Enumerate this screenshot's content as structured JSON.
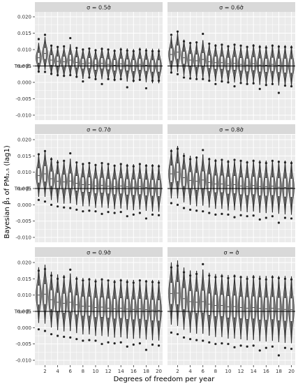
{
  "chart_data": {
    "type": "violin",
    "xlabel": "Degrees of freedom per year",
    "ylabel": "Bayesian β̂₁ of PM₂.₅ (lag1)",
    "x": [
      1,
      2,
      3,
      4,
      5,
      6,
      7,
      8,
      9,
      10,
      11,
      12,
      13,
      14,
      15,
      16,
      17,
      18,
      19,
      20
    ],
    "x_tick_labels": [
      "2",
      "4",
      "6",
      "8",
      "10",
      "12",
      "14",
      "16",
      "18",
      "20"
    ],
    "x_ticks": [
      2,
      4,
      6,
      8,
      10,
      12,
      14,
      16,
      18,
      20
    ],
    "y_tick_labels": [
      "0.020",
      "0.015",
      "0.010",
      "0.005",
      "0.000",
      "-0.005",
      "-0.010"
    ],
    "y_ticks": [
      0.02,
      0.015,
      0.01,
      0.005,
      0.0,
      -0.005,
      -0.01
    ],
    "ylim": [
      -0.0115,
      0.0215
    ],
    "reference_line": {
      "label": "True β₁",
      "value": 0.005
    },
    "legend": "none",
    "grid": true,
    "panels": [
      {
        "title": "σ = 0.5σ̂",
        "medians": [
          0.0075,
          0.0088,
          0.0068,
          0.0064,
          0.0063,
          0.0068,
          0.0061,
          0.0057,
          0.0059,
          0.0054,
          0.0058,
          0.0055,
          0.0052,
          0.0056,
          0.0053,
          0.0051,
          0.0055,
          0.0052,
          0.005,
          0.005
        ],
        "spreads": [
          0.0045,
          0.005,
          0.0045,
          0.0045,
          0.0046,
          0.0048,
          0.0046,
          0.0046,
          0.0046,
          0.0047,
          0.0048,
          0.0047,
          0.0048,
          0.0049,
          0.005,
          0.005,
          0.005,
          0.0051,
          0.0052,
          0.0052
        ],
        "upper_outliers": [
          0.0132,
          0.0145,
          0.0112,
          0.0108,
          0.011,
          0.0135,
          0.0105,
          0.01,
          0.0103,
          0.0098,
          0.0102,
          0.01,
          0.0096,
          0.01,
          0.0097,
          0.0095,
          0.01,
          0.0097,
          0.0095,
          0.0095
        ],
        "lower_outliers": [
          0.0033,
          0.0032,
          0.0026,
          0.0022,
          0.002,
          0.0022,
          0.0017,
          0.0003,
          0.0015,
          0.001,
          -0.0005,
          0.001,
          0.0008,
          0.001,
          -0.0015,
          0.0005,
          0.0008,
          -0.0018,
          0.0005,
          0.0005
        ]
      },
      {
        "title": "σ = 0.6σ̂",
        "medians": [
          0.0085,
          0.0092,
          0.0075,
          0.0068,
          0.0066,
          0.007,
          0.0063,
          0.006,
          0.006,
          0.0056,
          0.0058,
          0.0055,
          0.0053,
          0.0057,
          0.0053,
          0.0052,
          0.0055,
          0.0052,
          0.0051,
          0.005
        ],
        "spreads": [
          0.0055,
          0.006,
          0.0055,
          0.0055,
          0.0056,
          0.0058,
          0.0056,
          0.0056,
          0.0056,
          0.0057,
          0.0058,
          0.0057,
          0.0058,
          0.0059,
          0.006,
          0.006,
          0.006,
          0.0061,
          0.0062,
          0.0062
        ],
        "upper_outliers": [
          0.0145,
          0.0155,
          0.0125,
          0.012,
          0.0122,
          0.0148,
          0.0118,
          0.0112,
          0.0115,
          0.011,
          0.0115,
          0.0112,
          0.0108,
          0.0112,
          0.0108,
          0.0106,
          0.0112,
          0.0109,
          0.0108,
          0.0107
        ],
        "lower_outliers": [
          0.003,
          0.0025,
          0.0015,
          0.0012,
          0.001,
          0.001,
          0.0005,
          -0.0005,
          0.0003,
          0.0,
          -0.0012,
          -0.0002,
          -0.0005,
          -0.0003,
          -0.002,
          -0.0008,
          -0.0005,
          -0.0032,
          -0.001,
          -0.0012
        ]
      },
      {
        "title": "σ = 0.7σ̂",
        "medians": [
          0.009,
          0.0095,
          0.008,
          0.0072,
          0.007,
          0.0073,
          0.0066,
          0.0062,
          0.0062,
          0.0058,
          0.006,
          0.0057,
          0.0055,
          0.0058,
          0.0055,
          0.0054,
          0.0056,
          0.0053,
          0.0052,
          0.0051
        ],
        "spreads": [
          0.0065,
          0.007,
          0.0065,
          0.0065,
          0.0066,
          0.0068,
          0.0066,
          0.0066,
          0.0066,
          0.0067,
          0.0068,
          0.0067,
          0.0068,
          0.0069,
          0.007,
          0.007,
          0.007,
          0.0071,
          0.0072,
          0.0072
        ],
        "upper_outliers": [
          0.0155,
          0.0165,
          0.014,
          0.013,
          0.0135,
          0.0158,
          0.013,
          0.0125,
          0.0128,
          0.0122,
          0.0128,
          0.0125,
          0.012,
          0.0125,
          0.012,
          0.0118,
          0.0125,
          0.012,
          0.012,
          0.0118
        ],
        "lower_outliers": [
          0.0015,
          0.001,
          0.0,
          -0.0005,
          -0.0008,
          -0.001,
          -0.0015,
          -0.002,
          -0.0018,
          -0.002,
          -0.0028,
          -0.0022,
          -0.0025,
          -0.0022,
          -0.0035,
          -0.003,
          -0.0025,
          -0.0042,
          -0.003,
          -0.0032
        ]
      },
      {
        "title": "σ = 0.8σ̂",
        "medians": [
          0.0095,
          0.01,
          0.0083,
          0.0075,
          0.0072,
          0.0076,
          0.0068,
          0.0064,
          0.0064,
          0.006,
          0.0062,
          0.0058,
          0.0056,
          0.0059,
          0.0056,
          0.0055,
          0.0057,
          0.0054,
          0.0053,
          0.0052
        ],
        "spreads": [
          0.0075,
          0.008,
          0.0075,
          0.0075,
          0.0076,
          0.0078,
          0.0076,
          0.0076,
          0.0076,
          0.0077,
          0.0078,
          0.0077,
          0.0078,
          0.0079,
          0.008,
          0.008,
          0.008,
          0.0081,
          0.0082,
          0.0082
        ],
        "upper_outliers": [
          0.0165,
          0.0172,
          0.015,
          0.014,
          0.0145,
          0.0168,
          0.014,
          0.0135,
          0.0138,
          0.0132,
          0.0138,
          0.0135,
          0.013,
          0.0135,
          0.013,
          0.0128,
          0.0135,
          0.0132,
          0.013,
          0.0128
        ],
        "lower_outliers": [
          0.0005,
          0.0,
          -0.001,
          -0.0015,
          -0.0018,
          -0.002,
          -0.0025,
          -0.003,
          -0.0028,
          -0.003,
          -0.0038,
          -0.0032,
          -0.0035,
          -0.0033,
          -0.0045,
          -0.004,
          -0.0035,
          -0.0055,
          -0.004,
          -0.0042
        ]
      },
      {
        "title": "σ = 0.9σ̂",
        "medians": [
          0.01,
          0.0103,
          0.0086,
          0.0078,
          0.0075,
          0.0078,
          0.007,
          0.0066,
          0.0066,
          0.0062,
          0.0063,
          0.006,
          0.0058,
          0.006,
          0.0057,
          0.0056,
          0.0058,
          0.0055,
          0.0054,
          0.0053
        ],
        "spreads": [
          0.0085,
          0.009,
          0.0085,
          0.0085,
          0.0086,
          0.0088,
          0.0086,
          0.0086,
          0.0086,
          0.0087,
          0.0088,
          0.0087,
          0.0088,
          0.0089,
          0.009,
          0.009,
          0.009,
          0.0091,
          0.0092,
          0.0092
        ],
        "upper_outliers": [
          0.0175,
          0.018,
          0.016,
          0.015,
          0.0155,
          0.0178,
          0.015,
          0.0145,
          0.0148,
          0.0142,
          0.0148,
          0.0145,
          0.014,
          0.0145,
          0.014,
          0.0138,
          0.0145,
          0.0142,
          0.014,
          0.0138
        ],
        "lower_outliers": [
          -0.0005,
          -0.001,
          -0.002,
          -0.0025,
          -0.0028,
          -0.003,
          -0.0035,
          -0.004,
          -0.0038,
          -0.004,
          -0.005,
          -0.0045,
          -0.0048,
          -0.0045,
          -0.0058,
          -0.0052,
          -0.0048,
          -0.0068,
          -0.0052,
          -0.0055
        ]
      },
      {
        "title": "σ = σ̂",
        "medians": [
          0.0105,
          0.0106,
          0.0089,
          0.008,
          0.0078,
          0.008,
          0.0072,
          0.0068,
          0.0068,
          0.0064,
          0.0065,
          0.0062,
          0.006,
          0.0062,
          0.0059,
          0.0058,
          0.006,
          0.0057,
          0.0056,
          0.0055
        ],
        "spreads": [
          0.0095,
          0.01,
          0.0095,
          0.0095,
          0.0096,
          0.0098,
          0.0096,
          0.0096,
          0.0096,
          0.0097,
          0.0098,
          0.0097,
          0.0098,
          0.0099,
          0.01,
          0.01,
          0.01,
          0.0101,
          0.0102,
          0.0102
        ],
        "upper_outliers": [
          0.0185,
          0.019,
          0.017,
          0.016,
          0.0165,
          0.0195,
          0.016,
          0.0155,
          0.0158,
          0.0152,
          0.0158,
          0.0155,
          0.015,
          0.0155,
          0.015,
          0.0148,
          0.0155,
          0.0152,
          0.015,
          0.0148
        ],
        "lower_outliers": [
          -0.0015,
          -0.002,
          -0.003,
          -0.0035,
          -0.0038,
          -0.004,
          -0.0045,
          -0.005,
          -0.0048,
          -0.005,
          -0.006,
          -0.0055,
          -0.0058,
          -0.0055,
          -0.007,
          -0.0062,
          -0.0058,
          -0.0085,
          -0.0062,
          -0.0065
        ]
      }
    ],
    "colors": {
      "violin_fill": "#7f7f7f",
      "violin_stroke": "#2b2b2b",
      "box_fill": "#ffffff",
      "panel_bg": "#ebebeb",
      "grid": "#ffffff",
      "strip_bg": "#d9d9d9",
      "reference_line": "#000000"
    }
  }
}
